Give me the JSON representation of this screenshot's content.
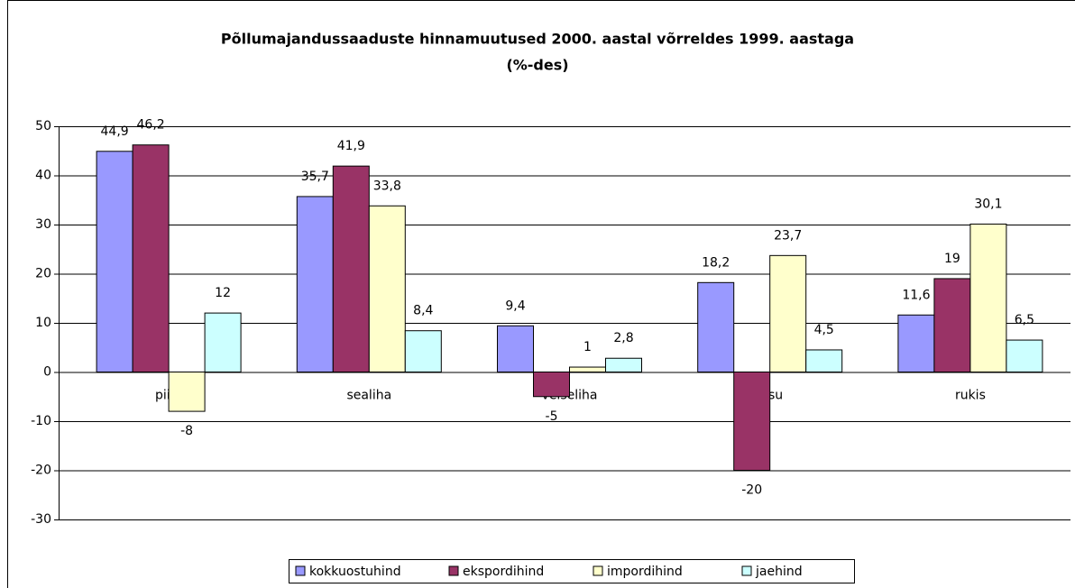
{
  "chart_data": {
    "type": "bar",
    "title": "Põllumajandussaaduste hinnamuutused 2000. aastal võrreldes 1999. aastaga",
    "subtitle": "(%-des)",
    "categories": [
      "piim",
      "sealiha",
      "veiseliha",
      "nisu",
      "rukis"
    ],
    "series": [
      {
        "name": "kokkuostuhind",
        "color": "#9999ff",
        "values": [
          44.9,
          35.7,
          9.4,
          18.2,
          11.6
        ],
        "value_labels": [
          "44,9",
          "35,7",
          "9,4",
          "18,2",
          "11,6"
        ]
      },
      {
        "name": "ekspordihind",
        "color": "#993366",
        "values": [
          46.2,
          41.9,
          -5,
          -20,
          19
        ],
        "value_labels": [
          "46,2",
          "41,9",
          "-5",
          "-20",
          "19"
        ]
      },
      {
        "name": "impordihind",
        "color": "#ffffcc",
        "values": [
          -8,
          33.8,
          1,
          23.7,
          30.1
        ],
        "value_labels": [
          "-8",
          "33,8",
          "1",
          "23,7",
          "30,1"
        ]
      },
      {
        "name": "jaehind",
        "color": "#ccffff",
        "values": [
          12,
          8.4,
          2.8,
          4.5,
          6.5
        ],
        "value_labels": [
          "12",
          "8,4",
          "2,8",
          "4,5",
          "6,5"
        ]
      }
    ],
    "ylim": [
      -30,
      50
    ],
    "yticks": [
      -30,
      -20,
      -10,
      0,
      10,
      20,
      30,
      40,
      50
    ],
    "grid": true,
    "legend": "bottom"
  }
}
